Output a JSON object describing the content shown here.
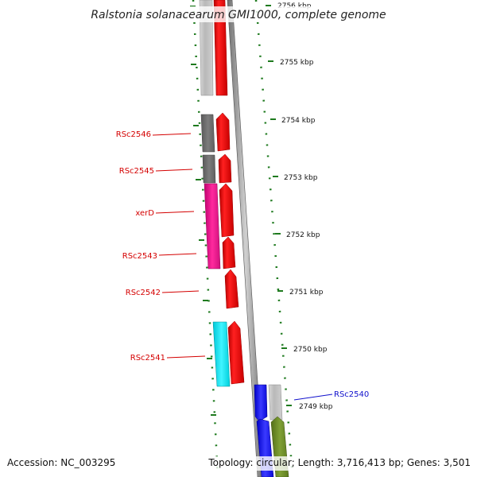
{
  "title": "Ralstonia solanacearum GMI1000, complete genome",
  "footer": {
    "accession": "Accession: NC_003295",
    "summary": "Topology: circular; Length: 3,716,413 bp; Genes: 3,501"
  },
  "scale_labels": [
    "2756 kbp",
    "2755 kbp",
    "2754 kbp",
    "2753 kbp",
    "2752 kbp",
    "2751 kbp",
    "2750 kbp",
    "2749 kbp"
  ],
  "gene_labels": [
    {
      "name": "RSc2546",
      "color": "#d40000"
    },
    {
      "name": "RSc2545",
      "color": "#d40000"
    },
    {
      "name": "xerD",
      "color": "#d40000"
    },
    {
      "name": "RSc2543",
      "color": "#d40000"
    },
    {
      "name": "RSc2542",
      "color": "#d40000"
    },
    {
      "name": "RSc2541",
      "color": "#d40000"
    },
    {
      "name": "RSc2540",
      "color": "#1010cc"
    }
  ],
  "colors": {
    "backbone": "#8a8a8a",
    "tick": "#1e7a1e",
    "gene_red": "#ee0000",
    "cog_gray_light": "#c4c4c4",
    "cog_gray_dark": "#6e6e6e",
    "cog_magenta": "#e0108a",
    "cog_cyan": "#00e0e8",
    "cog_blue": "#1a1aee",
    "cog_olive": "#6b8e23"
  }
}
